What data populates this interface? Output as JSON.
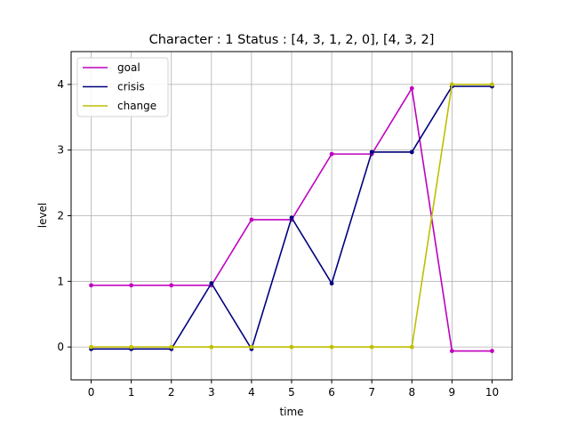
{
  "chart_data": {
    "type": "line",
    "title": "Character : 1 Status : [4, 3, 1, 2, 0], [4, 3, 2]",
    "xlabel": "time",
    "ylabel": "level",
    "x": [
      0,
      1,
      2,
      3,
      4,
      5,
      6,
      7,
      8,
      9,
      10
    ],
    "xlim": [
      -0.5,
      10.5
    ],
    "ylim": [
      -0.5,
      4.5
    ],
    "xticks": [
      0,
      1,
      2,
      3,
      4,
      5,
      6,
      7,
      8,
      9,
      10
    ],
    "yticks": [
      0,
      1,
      2,
      3,
      4
    ],
    "grid": true,
    "legend_position": "upper-left",
    "series": [
      {
        "name": "goal",
        "color": "#bf00bf",
        "values": [
          0.94,
          0.94,
          0.94,
          0.94,
          1.94,
          1.94,
          2.94,
          2.94,
          3.94,
          -0.06,
          -0.06
        ]
      },
      {
        "name": "crisis",
        "color": "#00007f",
        "values": [
          -0.03,
          -0.03,
          -0.03,
          0.97,
          -0.03,
          1.97,
          0.97,
          2.97,
          2.97,
          3.97,
          3.97
        ]
      },
      {
        "name": "change",
        "color": "#bfbf00",
        "values": [
          0,
          0,
          0,
          0,
          0,
          0,
          0,
          0,
          0,
          4.0,
          4.0
        ]
      }
    ]
  }
}
